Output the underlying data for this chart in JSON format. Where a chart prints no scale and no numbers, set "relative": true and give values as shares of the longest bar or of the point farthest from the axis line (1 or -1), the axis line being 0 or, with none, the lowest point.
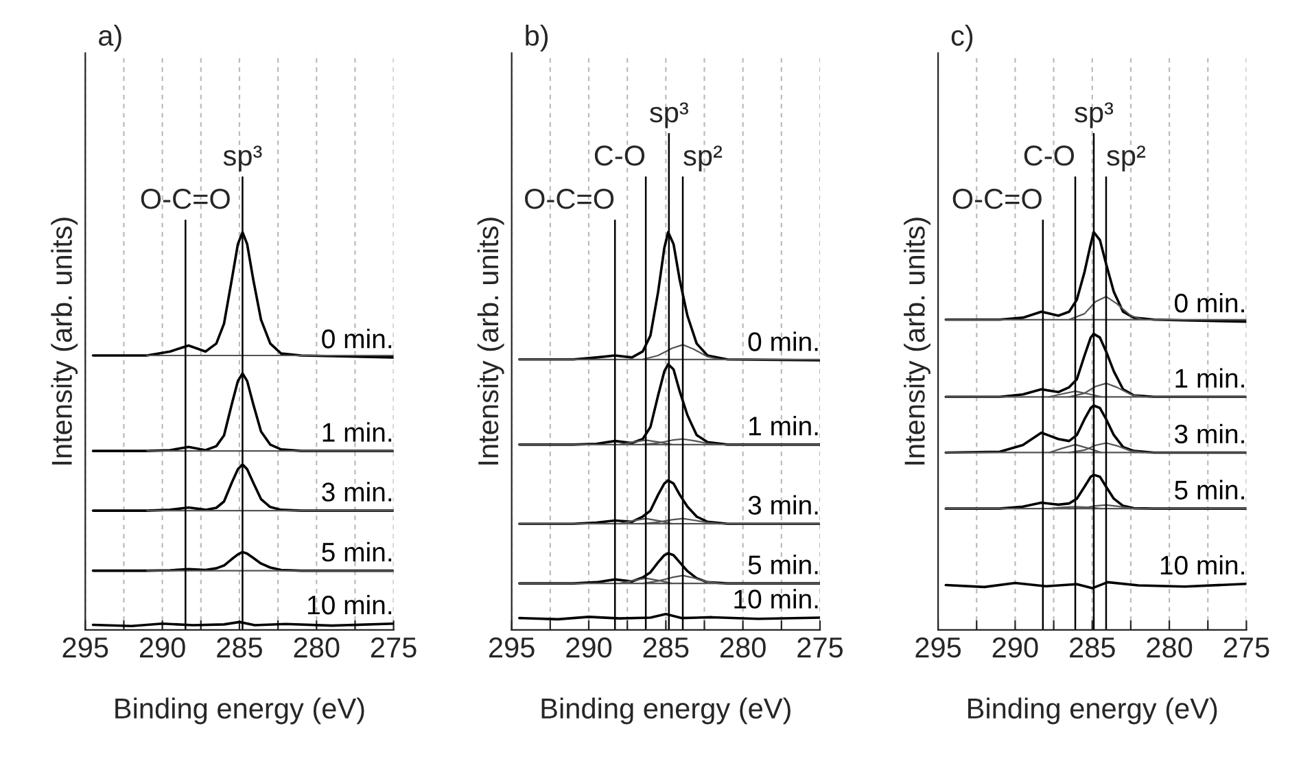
{
  "chart_data": [
    {
      "type": "line",
      "title": "a)",
      "xlabel": "Binding energy (eV)",
      "ylabel": "Intensity (arb. units)",
      "relative": true,
      "grid": "x",
      "xlim": [
        295,
        275
      ],
      "xticks": [
        295,
        {
          "value": 292.5,
          "label": null
        },
        290,
        {
          "value": 287.5,
          "label": null
        },
        285,
        {
          "value": 282.5,
          "label": null
        },
        280,
        {
          "value": 277.5,
          "label": null
        },
        275
      ],
      "ref_lines": [
        {
          "axis": "x",
          "value": 288.5,
          "label": "O-C=O"
        },
        {
          "axis": "x",
          "value": 284.8,
          "label": "sp³"
        }
      ],
      "series": [
        {
          "name": "0 min.",
          "color": "#000000",
          "x": [
            294.5,
            291,
            289.5,
            288.3,
            287.2,
            286.5,
            286,
            285.5,
            285.1,
            284.8,
            284.5,
            284.1,
            283.6,
            283,
            282.3,
            281,
            275
          ],
          "values": [
            0.69,
            0.69,
            0.7,
            0.715,
            0.7,
            0.72,
            0.77,
            0.88,
            0.97,
            1.0,
            0.97,
            0.88,
            0.78,
            0.72,
            0.695,
            0.69,
            0.685
          ]
        },
        {
          "name": "1 min.",
          "color": "#000000",
          "x": [
            294.5,
            291,
            289.5,
            288.3,
            287.2,
            286.5,
            286,
            285.5,
            285.1,
            284.8,
            284.5,
            284.1,
            283.6,
            283,
            282.3,
            281,
            275
          ],
          "values": [
            0.45,
            0.45,
            0.452,
            0.46,
            0.452,
            0.462,
            0.489,
            0.567,
            0.626,
            0.645,
            0.626,
            0.567,
            0.499,
            0.466,
            0.454,
            0.45,
            0.45
          ]
        },
        {
          "name": "3 min.",
          "color": "#000000",
          "x": [
            294.5,
            291,
            289.5,
            288.3,
            287.2,
            286.5,
            286,
            285.5,
            285.1,
            284.8,
            284.5,
            284.1,
            283.6,
            283,
            282.3,
            281,
            275
          ],
          "values": [
            0.3,
            0.3,
            0.302,
            0.308,
            0.302,
            0.307,
            0.323,
            0.37,
            0.404,
            0.416,
            0.404,
            0.37,
            0.329,
            0.309,
            0.302,
            0.3,
            0.3
          ]
        },
        {
          "name": "5 min.",
          "color": "#000000",
          "x": [
            294.5,
            291,
            289.5,
            288.3,
            287.2,
            286.5,
            286,
            285.5,
            285.1,
            284.8,
            284.5,
            284.1,
            283.6,
            283,
            282.3,
            281,
            275
          ],
          "values": [
            0.149,
            0.149,
            0.15,
            0.153,
            0.151,
            0.155,
            0.162,
            0.178,
            0.19,
            0.196,
            0.192,
            0.181,
            0.167,
            0.157,
            0.151,
            0.149,
            0.149
          ]
        },
        {
          "name": "10 min.",
          "color": "#000000",
          "x": [
            294.5,
            292,
            290,
            288,
            286,
            285,
            284,
            282,
            279,
            275
          ],
          "values": [
            0.013,
            0.01,
            0.016,
            0.012,
            0.014,
            0.02,
            0.012,
            0.015,
            0.011,
            0.016
          ]
        },
        {
          "color": "#555555",
          "x": [
            291,
            275
          ],
          "values": [
            0.69,
            0.69
          ]
        },
        {
          "color": "#555555",
          "x": [
            291,
            275
          ],
          "values": [
            0.45,
            0.45
          ]
        },
        {
          "color": "#555555",
          "x": [
            291,
            275
          ],
          "values": [
            0.3,
            0.3
          ]
        },
        {
          "color": "#555555",
          "x": [
            291,
            275
          ],
          "values": [
            0.149,
            0.149
          ]
        }
      ]
    },
    {
      "type": "line",
      "title": "b)",
      "xlabel": "Binding energy (eV)",
      "ylabel": "Intensity (arb. units)",
      "relative": true,
      "grid": "x",
      "xlim": [
        295,
        275
      ],
      "xticks": [
        295,
        {
          "value": 292.5,
          "label": null
        },
        290,
        {
          "value": 287.5,
          "label": null
        },
        285,
        {
          "value": 282.5,
          "label": null
        },
        280,
        {
          "value": 277.5,
          "label": null
        },
        275
      ],
      "ref_lines": [
        {
          "axis": "x",
          "value": 288.3,
          "label": "O-C=O"
        },
        {
          "axis": "x",
          "value": 286.3,
          "label": "C-O"
        },
        {
          "axis": "x",
          "value": 284.8,
          "label": "sp³"
        },
        {
          "axis": "x",
          "value": 283.9,
          "label": "sp²"
        }
      ],
      "series": [
        {
          "name": "0 min.",
          "color": "#000000",
          "x": [
            294.5,
            291,
            289.5,
            288.3,
            287.2,
            286.5,
            286,
            285.5,
            285.1,
            284.85,
            284.5,
            284.1,
            283.6,
            283,
            282.3,
            281,
            275
          ],
          "values": [
            0.68,
            0.68,
            0.685,
            0.69,
            0.685,
            0.7,
            0.74,
            0.85,
            0.96,
            1.0,
            0.97,
            0.88,
            0.79,
            0.72,
            0.69,
            0.68,
            0.678
          ]
        },
        {
          "name": "1 min.",
          "color": "#000000",
          "x": [
            294.5,
            291,
            289.5,
            288.3,
            287.2,
            286.5,
            286,
            285.5,
            285.1,
            284.85,
            284.5,
            284.1,
            283.6,
            283,
            282.3,
            281,
            275
          ],
          "values": [
            0.466,
            0.466,
            0.468,
            0.475,
            0.47,
            0.48,
            0.51,
            0.59,
            0.65,
            0.668,
            0.655,
            0.6,
            0.54,
            0.49,
            0.472,
            0.466,
            0.466
          ]
        },
        {
          "name": "3 min.",
          "color": "#000000",
          "x": [
            294.5,
            291,
            289.5,
            288.3,
            287.2,
            286.5,
            286,
            285.5,
            285.1,
            284.85,
            284.5,
            284.1,
            283.6,
            283,
            282.3,
            281,
            275
          ],
          "values": [
            0.267,
            0.267,
            0.27,
            0.275,
            0.272,
            0.285,
            0.3,
            0.34,
            0.368,
            0.376,
            0.368,
            0.34,
            0.31,
            0.285,
            0.272,
            0.267,
            0.267
          ]
        },
        {
          "name": "5 min.",
          "color": "#000000",
          "x": [
            294.5,
            291,
            289.5,
            288.3,
            287.2,
            286.5,
            286,
            285.5,
            285.1,
            284.85,
            284.5,
            284.1,
            283.6,
            283,
            282.3,
            281,
            275
          ],
          "values": [
            0.117,
            0.117,
            0.12,
            0.127,
            0.122,
            0.132,
            0.145,
            0.17,
            0.188,
            0.193,
            0.188,
            0.17,
            0.148,
            0.13,
            0.12,
            0.117,
            0.117
          ]
        },
        {
          "name": "10 min.",
          "color": "#000000",
          "x": [
            294.5,
            292,
            290,
            288,
            286,
            285,
            284,
            282,
            279,
            275
          ],
          "values": [
            0.03,
            0.027,
            0.033,
            0.029,
            0.031,
            0.04,
            0.03,
            0.032,
            0.028,
            0.031
          ]
        },
        {
          "color": "#555555",
          "x": [
            286.5,
            285.5,
            284.6,
            283.9,
            283.2,
            282.3,
            281.5
          ],
          "values": [
            0.68,
            0.69,
            0.708,
            0.717,
            0.706,
            0.687,
            0.68
          ]
        },
        {
          "color": "#555555",
          "x": [
            286.5,
            285.5,
            284.6,
            283.9,
            283.2,
            282.3,
            281.5
          ],
          "values": [
            0.466,
            0.47,
            0.477,
            0.48,
            0.476,
            0.469,
            0.466
          ]
        },
        {
          "color": "#555555",
          "x": [
            286.5,
            285.5,
            284.6,
            283.9,
            283.2,
            282.3,
            281.5
          ],
          "values": [
            0.267,
            0.271,
            0.277,
            0.28,
            0.276,
            0.27,
            0.267
          ]
        },
        {
          "color": "#555555",
          "x": [
            286.5,
            285.5,
            284.6,
            283.9,
            283.2,
            282.3,
            281.5
          ],
          "values": [
            0.117,
            0.123,
            0.132,
            0.137,
            0.131,
            0.121,
            0.117
          ]
        },
        {
          "color": "#555555",
          "x": [
            288,
            287.2,
            286.3,
            285.4,
            284.6
          ],
          "values": [
            0.466,
            0.472,
            0.477,
            0.472,
            0.466
          ]
        },
        {
          "color": "#555555",
          "x": [
            288,
            287.2,
            286.3,
            285.4,
            284.6
          ],
          "values": [
            0.267,
            0.274,
            0.28,
            0.274,
            0.267
          ]
        },
        {
          "color": "#555555",
          "x": [
            288,
            287.2,
            286.3,
            285.4,
            284.6
          ],
          "values": [
            0.117,
            0.124,
            0.13,
            0.124,
            0.117
          ]
        },
        {
          "color": "#555555",
          "x": [
            294.5,
            275
          ],
          "values": [
            0.68,
            0.68
          ]
        },
        {
          "color": "#555555",
          "x": [
            294.5,
            275
          ],
          "values": [
            0.466,
            0.466
          ]
        },
        {
          "color": "#555555",
          "x": [
            294.5,
            275
          ],
          "values": [
            0.267,
            0.267
          ]
        },
        {
          "color": "#555555",
          "x": [
            294.5,
            275
          ],
          "values": [
            0.117,
            0.117
          ]
        }
      ]
    },
    {
      "type": "line",
      "title": "c)",
      "xlabel": "Binding energy (eV)",
      "ylabel": "Intensity (arb. units)",
      "relative": true,
      "grid": "x",
      "xlim": [
        295,
        275
      ],
      "xticks": [
        295,
        {
          "value": 292.5,
          "label": null
        },
        290,
        {
          "value": 287.5,
          "label": null
        },
        285,
        {
          "value": 282.5,
          "label": null
        },
        280,
        {
          "value": 277.5,
          "label": null
        },
        275
      ],
      "ref_lines": [
        {
          "axis": "x",
          "value": 288.2,
          "label": "O-C=O"
        },
        {
          "axis": "x",
          "value": 286.1,
          "label": "C-O"
        },
        {
          "axis": "x",
          "value": 284.9,
          "label": "sp³"
        },
        {
          "axis": "x",
          "value": 284.1,
          "label": "sp²"
        }
      ],
      "series": [
        {
          "name": "0 min.",
          "color": "#000000",
          "x": [
            294.5,
            291,
            289.5,
            288.3,
            287.2,
            286.5,
            286,
            285.5,
            285.1,
            284.9,
            284.5,
            284.1,
            283.6,
            283,
            282.3,
            281,
            275
          ],
          "values": [
            0.78,
            0.78,
            0.785,
            0.8,
            0.79,
            0.8,
            0.83,
            0.9,
            0.97,
            1.0,
            0.98,
            0.92,
            0.85,
            0.8,
            0.785,
            0.78,
            0.775
          ]
        },
        {
          "name": "1 min.",
          "color": "#000000",
          "x": [
            294.5,
            291,
            289.5,
            288.3,
            287.2,
            286.5,
            286,
            285.5,
            285.1,
            284.9,
            284.5,
            284.1,
            283.6,
            283,
            282.3,
            281,
            275
          ],
          "values": [
            0.586,
            0.586,
            0.592,
            0.605,
            0.598,
            0.61,
            0.63,
            0.69,
            0.735,
            0.744,
            0.735,
            0.7,
            0.65,
            0.605,
            0.59,
            0.586,
            0.586
          ]
        },
        {
          "name": "3 min.",
          "color": "#000000",
          "x": [
            294.5,
            291,
            289.5,
            288.3,
            287.2,
            286.5,
            286,
            285.5,
            285.1,
            284.9,
            284.5,
            284.1,
            283.6,
            283,
            282.3,
            281,
            275
          ],
          "values": [
            0.446,
            0.448,
            0.465,
            0.496,
            0.48,
            0.475,
            0.49,
            0.53,
            0.558,
            0.564,
            0.558,
            0.53,
            0.49,
            0.46,
            0.45,
            0.446,
            0.446
          ]
        },
        {
          "name": "5 min.",
          "color": "#000000",
          "x": [
            294.5,
            291,
            289.5,
            288.3,
            287.2,
            286.5,
            286,
            285.5,
            285.1,
            284.9,
            284.5,
            284.1,
            283.6,
            283,
            282.3,
            281,
            275
          ],
          "values": [
            0.305,
            0.305,
            0.31,
            0.32,
            0.315,
            0.318,
            0.33,
            0.36,
            0.385,
            0.39,
            0.385,
            0.36,
            0.33,
            0.312,
            0.306,
            0.305,
            0.305
          ]
        },
        {
          "name": "10 min.",
          "color": "#000000",
          "x": [
            294.5,
            292,
            290,
            288,
            286,
            285,
            284,
            282,
            279,
            275
          ],
          "values": [
            0.113,
            0.108,
            0.118,
            0.11,
            0.115,
            0.105,
            0.12,
            0.112,
            0.109,
            0.116
          ]
        },
        {
          "color": "#555555",
          "x": [
            286.5,
            285.5,
            284.8,
            284.1,
            283.4,
            282.5,
            281.7
          ],
          "values": [
            0.78,
            0.795,
            0.825,
            0.838,
            0.82,
            0.79,
            0.78
          ]
        },
        {
          "color": "#555555",
          "x": [
            286.5,
            285.5,
            284.8,
            284.1,
            283.4,
            282.5,
            281.7
          ],
          "values": [
            0.586,
            0.595,
            0.612,
            0.62,
            0.61,
            0.592,
            0.586
          ]
        },
        {
          "color": "#555555",
          "x": [
            286.5,
            285.5,
            284.8,
            284.1,
            283.4,
            282.5,
            281.7
          ],
          "values": [
            0.446,
            0.452,
            0.464,
            0.47,
            0.463,
            0.45,
            0.446
          ]
        },
        {
          "color": "#555555",
          "x": [
            286.5,
            285.5,
            284.8,
            284.1,
            283.4,
            282.5,
            281.7
          ],
          "values": [
            0.305,
            0.307,
            0.312,
            0.314,
            0.311,
            0.306,
            0.305
          ]
        },
        {
          "color": "#555555",
          "x": [
            287.8,
            287,
            286.1,
            285.2,
            284.4
          ],
          "values": [
            0.586,
            0.593,
            0.6,
            0.593,
            0.586
          ]
        },
        {
          "color": "#555555",
          "x": [
            287.8,
            287,
            286.1,
            285.2,
            284.4
          ],
          "values": [
            0.446,
            0.456,
            0.466,
            0.456,
            0.446
          ]
        },
        {
          "color": "#555555",
          "x": [
            287.8,
            287,
            286.1,
            285.2,
            284.4
          ],
          "values": [
            0.305,
            0.308,
            0.31,
            0.308,
            0.305
          ]
        },
        {
          "color": "#555555",
          "x": [
            294.5,
            275
          ],
          "values": [
            0.78,
            0.78
          ]
        },
        {
          "color": "#555555",
          "x": [
            294.5,
            275
          ],
          "values": [
            0.586,
            0.586
          ]
        },
        {
          "color": "#555555",
          "x": [
            294.5,
            275
          ],
          "values": [
            0.446,
            0.446
          ]
        },
        {
          "color": "#555555",
          "x": [
            294.5,
            275
          ],
          "values": [
            0.305,
            0.305
          ]
        }
      ]
    }
  ]
}
